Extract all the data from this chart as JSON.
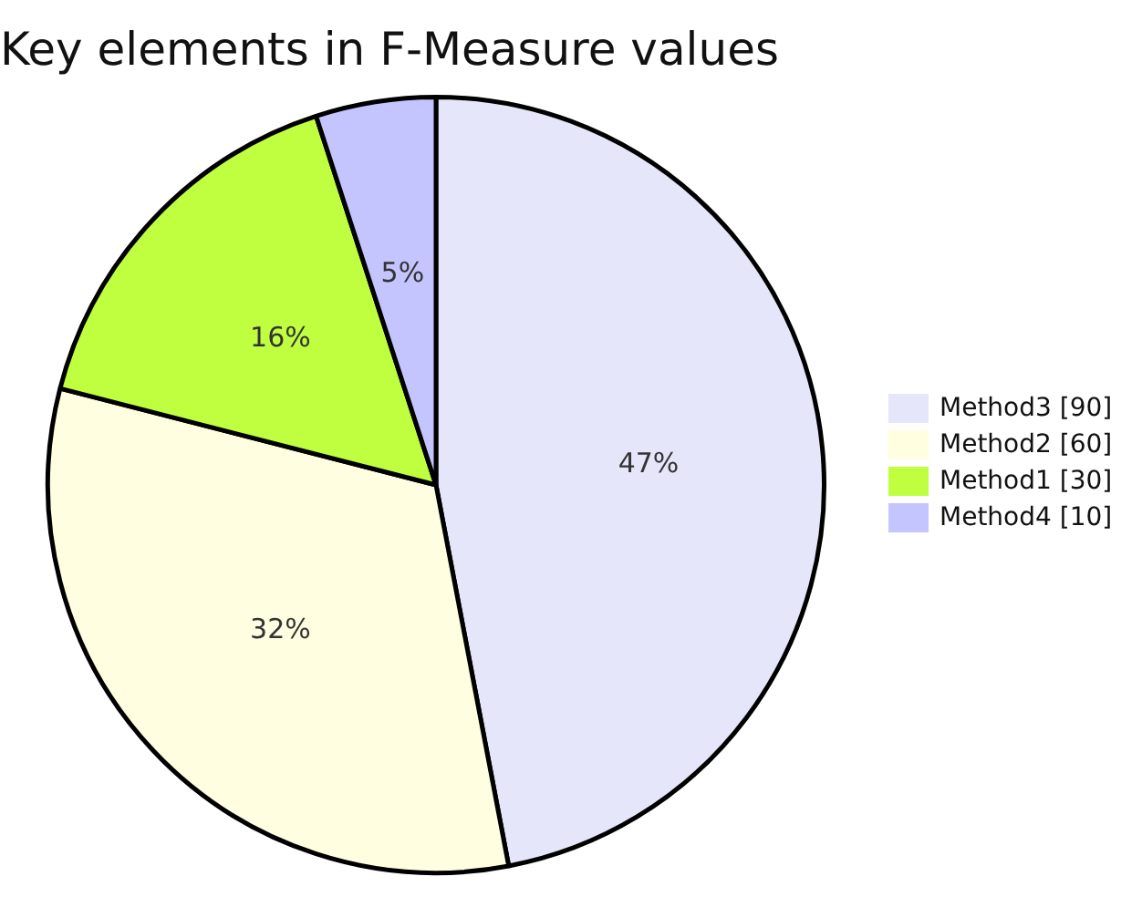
{
  "chart_data": {
    "type": "pie",
    "title": "Key elements in F-Measure values",
    "categories": [
      "Method3 [90]",
      "Method2 [60]",
      "Method1 [30]",
      "Method4 [10]"
    ],
    "values": [
      47,
      32,
      16,
      5
    ],
    "colors": [
      "#e6e6fa",
      "#fffee0",
      "#bfff40",
      "#c4c4ff"
    ],
    "value_labels": [
      "47%",
      "32%",
      "16%",
      "5%"
    ],
    "legend": "right"
  }
}
